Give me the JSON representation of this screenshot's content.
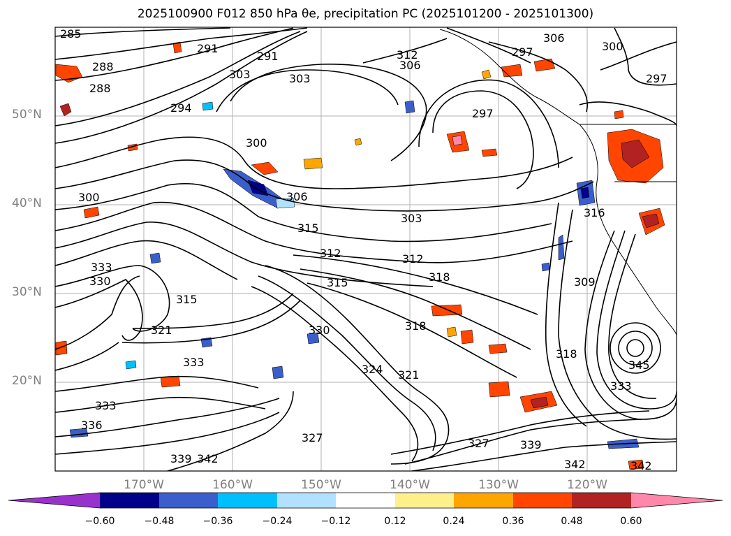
{
  "title": "2025100900 F012 850 hPa θe, precipitation PC (2025101200 - 2025101300)",
  "lat_labels": [
    "50°N",
    "40°N",
    "30°N",
    "20°N"
  ],
  "lon_labels": [
    "170°W",
    "160°W",
    "150°W",
    "140°W",
    "130°W",
    "120°W"
  ],
  "contour_labels": [
    "285",
    "288",
    "288",
    "291",
    "291",
    "294",
    "297",
    "297",
    "297",
    "300",
    "300",
    "300",
    "303",
    "303",
    "303",
    "306",
    "306",
    "306",
    "309",
    "312",
    "312",
    "312",
    "315",
    "315",
    "315",
    "316",
    "318",
    "318",
    "318",
    "321",
    "321",
    "324",
    "327",
    "327",
    "330",
    "330",
    "333",
    "333",
    "333",
    "333",
    "336",
    "339",
    "339",
    "342",
    "342",
    "342",
    "345"
  ],
  "colorbar": {
    "colors": [
      "#9932cc",
      "#00008b",
      "#3a5fcd",
      "#00bfff",
      "#b0e2ff",
      "#ffffff",
      "#fff08c",
      "#ffa500",
      "#ff4500",
      "#b22222",
      "#ff88aa"
    ],
    "ticks": [
      "−0.60",
      "−0.48",
      "−0.36",
      "−0.24",
      "−0.12",
      "0.12",
      "0.24",
      "0.36",
      "0.48",
      "0.60"
    ]
  }
}
